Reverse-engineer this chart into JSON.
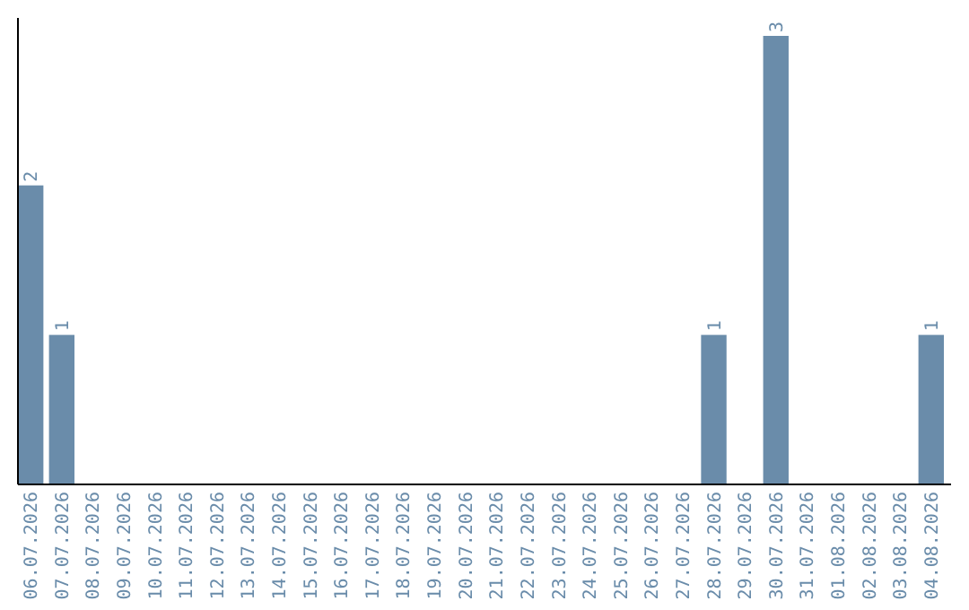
{
  "chart_data": {
    "type": "bar",
    "categories": [
      "06.07.2026",
      "07.07.2026",
      "08.07.2026",
      "09.07.2026",
      "10.07.2026",
      "11.07.2026",
      "12.07.2026",
      "13.07.2026",
      "14.07.2026",
      "15.07.2026",
      "16.07.2026",
      "17.07.2026",
      "18.07.2026",
      "19.07.2026",
      "20.07.2026",
      "21.07.2026",
      "22.07.2026",
      "23.07.2026",
      "24.07.2026",
      "25.07.2026",
      "26.07.2026",
      "27.07.2026",
      "28.07.2026",
      "29.07.2026",
      "30.07.2026",
      "31.07.2026",
      "01.08.2026",
      "02.08.2026",
      "03.08.2026",
      "04.08.2026"
    ],
    "values": [
      2,
      1,
      0,
      0,
      0,
      0,
      0,
      0,
      0,
      0,
      0,
      0,
      0,
      0,
      0,
      0,
      0,
      0,
      0,
      0,
      0,
      0,
      1,
      0,
      3,
      0,
      0,
      0,
      0,
      1
    ],
    "value_labels": [
      "2",
      "1",
      null,
      null,
      null,
      null,
      null,
      null,
      null,
      null,
      null,
      null,
      null,
      null,
      null,
      null,
      null,
      null,
      null,
      null,
      null,
      null,
      "1",
      null,
      "3",
      null,
      null,
      null,
      null,
      "1"
    ],
    "color": "#6a8caa",
    "ylim": [
      0,
      3.12
    ],
    "tick_labels": "x"
  }
}
